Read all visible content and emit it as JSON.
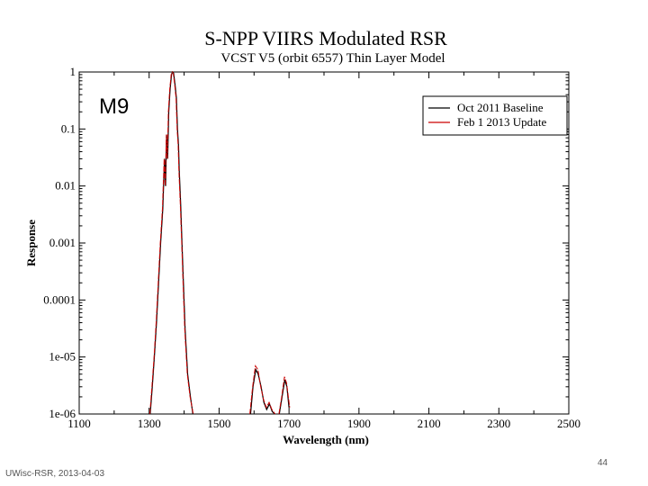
{
  "slide": {
    "footer": "UWisc-RSR, 2013-04-03",
    "page_number": "44"
  },
  "chart_data": {
    "type": "line",
    "title": "S-NPP VIIRS Modulated RSR",
    "subtitle": "VCST V5 (orbit 6557) Thin Layer Model",
    "annotation": "M9",
    "xlabel": "Wavelength (nm)",
    "ylabel": "Response",
    "xlim": [
      1100,
      2500
    ],
    "ylim": [
      1e-06,
      1
    ],
    "yscale": "log",
    "xticks": [
      1100,
      1300,
      1500,
      1700,
      1900,
      2100,
      2300,
      2500
    ],
    "xtick_labels": [
      "1100",
      "1300",
      "1500",
      "1700",
      "1900",
      "2100",
      "2300",
      "2500"
    ],
    "yticks": [
      1,
      0.1,
      0.01,
      0.001,
      0.0001,
      1e-05,
      1e-06
    ],
    "ytick_labels": [
      "1",
      "0.1",
      "0.01",
      "0.001",
      "0.0001",
      "1e-05",
      "1e-06"
    ],
    "legend_position": "top-right",
    "colors": {
      "baseline": "#000000",
      "update": "#cc0000"
    },
    "series": [
      {
        "name": "Oct 2011 Baseline",
        "color": "#000000",
        "segments": [
          [
            [
              1303,
              1e-06
            ],
            [
              1309,
              3e-06
            ],
            [
              1315,
              1e-05
            ],
            [
              1321,
              4e-05
            ],
            [
              1327,
              0.0002
            ],
            [
              1333,
              0.001
            ],
            [
              1339,
              0.004
            ],
            [
              1344,
              0.03
            ],
            [
              1347,
              0.01
            ],
            [
              1350,
              0.08
            ],
            [
              1353,
              0.03
            ],
            [
              1356,
              0.2
            ],
            [
              1360,
              0.5
            ],
            [
              1364,
              0.9
            ],
            [
              1367,
              1.0
            ],
            [
              1370,
              0.95
            ],
            [
              1374,
              0.6
            ],
            [
              1378,
              0.35
            ],
            [
              1381,
              0.1
            ],
            [
              1384,
              0.05
            ],
            [
              1386,
              0.02
            ],
            [
              1390,
              0.005
            ],
            [
              1394,
              0.001
            ],
            [
              1398,
              0.0002
            ],
            [
              1403,
              3e-05
            ],
            [
              1410,
              5e-06
            ],
            [
              1418,
              2e-06
            ],
            [
              1425,
              1e-06
            ]
          ],
          [
            [
              1590,
              1e-06
            ],
            [
              1597,
              3e-06
            ],
            [
              1605,
              6e-06
            ],
            [
              1612,
              5e-06
            ],
            [
              1620,
              3e-06
            ],
            [
              1628,
              1.6e-06
            ],
            [
              1636,
              1.2e-06
            ],
            [
              1644,
              1.5e-06
            ],
            [
              1652,
              1.1e-06
            ],
            [
              1660,
              1e-06
            ]
          ],
          [
            [
              1672,
              1e-06
            ],
            [
              1680,
              2e-06
            ],
            [
              1688,
              4e-06
            ],
            [
              1694,
              3e-06
            ],
            [
              1700,
              1.3e-06
            ]
          ]
        ]
      },
      {
        "name": "Feb 1 2013 Update",
        "color": "#cc0000",
        "segments": [
          [
            [
              1302,
              1e-06
            ],
            [
              1308,
              3e-06
            ],
            [
              1314,
              1e-05
            ],
            [
              1320,
              4e-05
            ],
            [
              1326,
              0.0002
            ],
            [
              1332,
              0.001
            ],
            [
              1338,
              0.004
            ],
            [
              1343,
              0.03
            ],
            [
              1346,
              0.01
            ],
            [
              1349,
              0.08
            ],
            [
              1352,
              0.03
            ],
            [
              1355,
              0.2
            ],
            [
              1359,
              0.5
            ],
            [
              1363,
              0.9
            ],
            [
              1366,
              1.0
            ],
            [
              1369,
              0.95
            ],
            [
              1373,
              0.6
            ],
            [
              1377,
              0.35
            ],
            [
              1380,
              0.1
            ],
            [
              1383,
              0.05
            ],
            [
              1385,
              0.02
            ],
            [
              1389,
              0.005
            ],
            [
              1393,
              0.001
            ],
            [
              1397,
              0.0002
            ],
            [
              1402,
              3e-05
            ],
            [
              1409,
              5e-06
            ],
            [
              1417,
              2e-06
            ],
            [
              1426,
              1e-06
            ]
          ],
          [
            [
              1588,
              1e-06
            ],
            [
              1596,
              3e-06
            ],
            [
              1604,
              7e-06
            ],
            [
              1611,
              6e-06
            ],
            [
              1619,
              3e-06
            ],
            [
              1627,
              1.8e-06
            ],
            [
              1635,
              1.3e-06
            ],
            [
              1643,
              1.6e-06
            ],
            [
              1651,
              1.2e-06
            ],
            [
              1660,
              1e-06
            ]
          ],
          [
            [
              1671,
              1e-06
            ],
            [
              1679,
              2e-06
            ],
            [
              1687,
              4.5e-06
            ],
            [
              1693,
              3.5e-06
            ],
            [
              1702,
              1.3e-06
            ]
          ]
        ]
      }
    ]
  }
}
